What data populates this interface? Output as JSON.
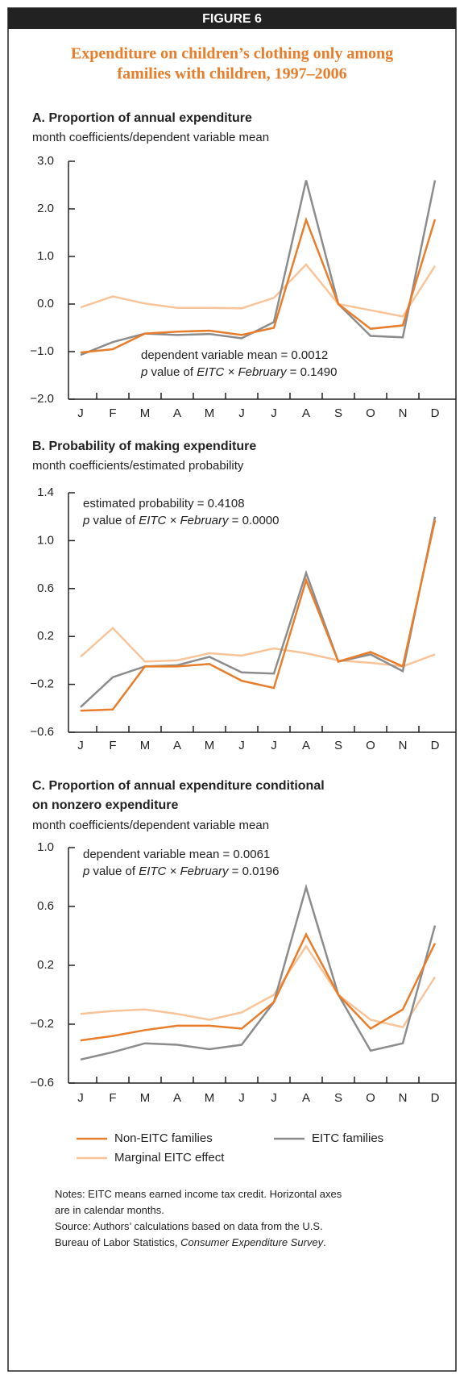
{
  "figure_label": "FIGURE 6",
  "title_lines": [
    "Expenditure on children’s clothing only among",
    "families with children, 1997–2006"
  ],
  "chart_data": [
    {
      "type": "line",
      "title_lines": [
        "A. Proportion of annual expenditure"
      ],
      "subtitle": "month coefficients/dependent variable mean",
      "annotation_lines": [
        [
          {
            "text": "dependent variable mean = 0.0012"
          }
        ],
        [
          {
            "text": "p",
            "italic": true
          },
          {
            "text": " value of "
          },
          {
            "text": "EITC × February",
            "italic": true
          },
          {
            "text": " = 0.1490"
          }
        ]
      ],
      "categories": [
        "J",
        "F",
        "M",
        "A",
        "M",
        "J",
        "J",
        "A",
        "S",
        "O",
        "N",
        "D"
      ],
      "ylim": [
        -2,
        3
      ],
      "yticks": [
        {
          "value": -2,
          "label": "−2.0"
        },
        {
          "value": -1,
          "label": "−1.0"
        },
        {
          "value": 0,
          "label": "0.0"
        },
        {
          "value": 1,
          "label": "1.0"
        },
        {
          "value": 2,
          "label": "2.0"
        },
        {
          "value": 3,
          "label": "3.0"
        }
      ],
      "series": [
        {
          "name": "Non-EITC families",
          "color": "#e87d2b",
          "values": [
            -1.02,
            -0.95,
            -0.62,
            -0.58,
            -0.56,
            -0.65,
            -0.5,
            1.77,
            0.0,
            -0.52,
            -0.45,
            1.78
          ]
        },
        {
          "name": "EITC families",
          "color": "#8c8c8c",
          "values": [
            -1.07,
            -0.8,
            -0.62,
            -0.65,
            -0.63,
            -0.72,
            -0.38,
            2.6,
            0.0,
            -0.67,
            -0.7,
            2.6
          ]
        },
        {
          "name": "Marginal EITC effect",
          "color": "#f9c49a",
          "values": [
            -0.07,
            0.16,
            0.01,
            -0.08,
            -0.08,
            -0.09,
            0.13,
            0.83,
            0.0,
            -0.13,
            -0.26,
            0.8
          ]
        }
      ]
    },
    {
      "type": "line",
      "title_lines": [
        "B. Probability of making expenditure"
      ],
      "subtitle": "month coefficients/estimated probability",
      "annotation_lines": [
        [
          {
            "text": "estimated probability = 0.4108"
          }
        ],
        [
          {
            "text": "p",
            "italic": true
          },
          {
            "text": " value of "
          },
          {
            "text": "EITC × February",
            "italic": true
          },
          {
            "text": " = 0.0000"
          }
        ]
      ],
      "categories": [
        "J",
        "F",
        "M",
        "A",
        "M",
        "J",
        "J",
        "A",
        "S",
        "O",
        "N",
        "D"
      ],
      "ylim": [
        -0.6,
        1.4
      ],
      "yticks": [
        {
          "value": -0.6,
          "label": "−0.6"
        },
        {
          "value": -0.2,
          "label": "−0.2"
        },
        0.2,
        0.6,
        {
          "value": 1,
          "label": "1.0"
        },
        1.4
      ],
      "series": [
        {
          "name": "Non-EITC families",
          "color": "#e87d2b",
          "values": [
            -0.42,
            -0.41,
            -0.05,
            -0.05,
            -0.03,
            -0.17,
            -0.23,
            0.67,
            -0.01,
            0.07,
            -0.05,
            1.17
          ]
        },
        {
          "name": "EITC families",
          "color": "#8c8c8c",
          "values": [
            -0.39,
            -0.14,
            -0.05,
            -0.04,
            0.03,
            -0.1,
            -0.11,
            0.73,
            -0.01,
            0.05,
            -0.09,
            1.2
          ]
        },
        {
          "name": "Marginal EITC effect",
          "color": "#f9c49a",
          "values": [
            0.03,
            0.27,
            -0.01,
            0.0,
            0.06,
            0.04,
            0.1,
            0.06,
            0.0,
            -0.02,
            -0.05,
            0.05
          ]
        }
      ]
    },
    {
      "type": "line",
      "title_lines": [
        "C. Proportion of annual expenditure conditional",
        "on nonzero expenditure"
      ],
      "subtitle": "month coefficients/dependent variable mean",
      "annotation_lines": [
        [
          {
            "text": "dependent variable mean = 0.0061"
          }
        ],
        [
          {
            "text": "p",
            "italic": true
          },
          {
            "text": " value of "
          },
          {
            "text": "EITC × February",
            "italic": true
          },
          {
            "text": " = 0.0196"
          }
        ]
      ],
      "categories": [
        "J",
        "F",
        "M",
        "A",
        "M",
        "J",
        "J",
        "A",
        "S",
        "O",
        "N",
        "D"
      ],
      "ylim": [
        -0.6,
        1.0
      ],
      "yticks": [
        {
          "value": -0.6,
          "label": "−0.6"
        },
        {
          "value": -0.2,
          "label": "−0.2"
        },
        0.2,
        0.6,
        {
          "value": 1,
          "label": "1.0"
        }
      ],
      "series": [
        {
          "name": "Non-EITC families",
          "color": "#e87d2b",
          "values": [
            -0.31,
            -0.28,
            -0.24,
            -0.21,
            -0.21,
            -0.23,
            -0.05,
            0.41,
            0.0,
            -0.23,
            -0.1,
            0.35
          ]
        },
        {
          "name": "EITC families",
          "color": "#8c8c8c",
          "values": [
            -0.44,
            -0.39,
            -0.33,
            -0.34,
            -0.37,
            -0.34,
            -0.05,
            0.73,
            0.0,
            -0.38,
            -0.33,
            0.47
          ]
        },
        {
          "name": "Marginal EITC effect",
          "color": "#f9c49a",
          "values": [
            -0.13,
            -0.11,
            -0.1,
            -0.13,
            -0.17,
            -0.12,
            0.0,
            0.33,
            0.0,
            -0.17,
            -0.22,
            0.12
          ]
        }
      ]
    }
  ],
  "notes": [
    [
      {
        "text": "Notes: EITC means earned income tax credit. Horizontal axes"
      }
    ],
    [
      {
        "text": "are in calendar months."
      }
    ],
    [
      {
        "text": "Source: Authors’ calculations based on data from the U.S."
      }
    ],
    [
      {
        "text": "Bureau of Labor Statistics, "
      },
      {
        "text": "Consumer Expenditure Survey",
        "italic": true
      },
      {
        "text": "."
      }
    ]
  ]
}
